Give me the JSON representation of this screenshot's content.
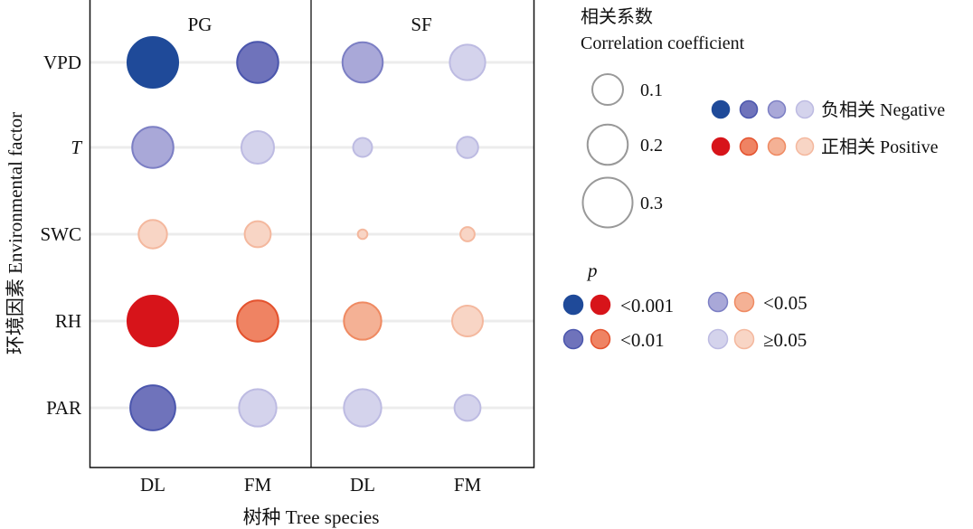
{
  "chart_data": {
    "type": "bubble-matrix",
    "panels": [
      "PG",
      "SF"
    ],
    "species": [
      "DL",
      "FM"
    ],
    "factors": [
      "VPD",
      "T",
      "SWC",
      "RH",
      "PAR"
    ],
    "factor_italic": [
      false,
      true,
      false,
      false,
      false
    ],
    "xlabel": "树种 Tree species",
    "ylabel": "环境因素 Environmental factor",
    "size_legend": {
      "title_cn": "相关系数",
      "title_en": "Correlation coefficient",
      "values": [
        0.1,
        0.2,
        0.3
      ],
      "labels": [
        "0.1",
        "0.2",
        "0.3"
      ]
    },
    "sign_legend": [
      {
        "label": "负相关 Negative",
        "sign": "negative"
      },
      {
        "label": "正相关 Positive",
        "sign": "positive"
      }
    ],
    "p_legend": {
      "title": "p",
      "levels": [
        {
          "key": "p001",
          "label": "<0.001"
        },
        {
          "key": "p01",
          "label": "<0.01"
        },
        {
          "key": "p05",
          "label": "<0.05"
        },
        {
          "key": "ns",
          "label": "≥0.05"
        }
      ]
    },
    "colors": {
      "negative": {
        "p001": "#1f4a99",
        "p01": "#6f73bb",
        "p05": "#a9a8d8",
        "ns": "#d4d3ec"
      },
      "negative_stroke": {
        "p001": "#1f4a99",
        "p01": "#4b56ad",
        "p05": "#7c7fc4",
        "ns": "#bdbbe2"
      },
      "positive": {
        "p001": "#d7141a",
        "p01": "#ef8363",
        "p05": "#f4b195",
        "ns": "#f8d5c5"
      },
      "positive_stroke": {
        "p001": "#d7141a",
        "p01": "#e4522e",
        "p05": "#ef8a62",
        "ns": "#f4b89e"
      },
      "gridline": "#ececec",
      "size_ring": "#999999"
    },
    "points": [
      {
        "panel": "PG",
        "species": "DL",
        "factor": "VPD",
        "r": -0.31,
        "p": "p001"
      },
      {
        "panel": "PG",
        "species": "FM",
        "factor": "VPD",
        "r": -0.21,
        "p": "p01"
      },
      {
        "panel": "SF",
        "species": "DL",
        "factor": "VPD",
        "r": -0.2,
        "p": "p05"
      },
      {
        "panel": "SF",
        "species": "FM",
        "factor": "VPD",
        "r": -0.15,
        "p": "ns"
      },
      {
        "panel": "PG",
        "species": "DL",
        "factor": "T",
        "r": -0.21,
        "p": "p05"
      },
      {
        "panel": "PG",
        "species": "FM",
        "factor": "T",
        "r": -0.12,
        "p": "ns"
      },
      {
        "panel": "SF",
        "species": "DL",
        "factor": "T",
        "r": -0.05,
        "p": "ns"
      },
      {
        "panel": "SF",
        "species": "FM",
        "factor": "T",
        "r": -0.06,
        "p": "ns"
      },
      {
        "panel": "PG",
        "species": "DL",
        "factor": "SWC",
        "r": 0.09,
        "p": "ns"
      },
      {
        "panel": "PG",
        "species": "FM",
        "factor": "SWC",
        "r": 0.08,
        "p": "ns"
      },
      {
        "panel": "SF",
        "species": "DL",
        "factor": "SWC",
        "r": 0.01,
        "p": "ns"
      },
      {
        "panel": "SF",
        "species": "FM",
        "factor": "SWC",
        "r": 0.03,
        "p": "ns"
      },
      {
        "panel": "PG",
        "species": "DL",
        "factor": "RH",
        "r": 0.31,
        "p": "p001"
      },
      {
        "panel": "PG",
        "species": "FM",
        "factor": "RH",
        "r": 0.21,
        "p": "p01"
      },
      {
        "panel": "SF",
        "species": "DL",
        "factor": "RH",
        "r": 0.17,
        "p": "p05"
      },
      {
        "panel": "SF",
        "species": "FM",
        "factor": "RH",
        "r": 0.1,
        "p": "ns"
      },
      {
        "panel": "PG",
        "species": "DL",
        "factor": "PAR",
        "r": -0.25,
        "p": "p01"
      },
      {
        "panel": "PG",
        "species": "FM",
        "factor": "PAR",
        "r": -0.17,
        "p": "ns"
      },
      {
        "panel": "SF",
        "species": "DL",
        "factor": "PAR",
        "r": -0.17,
        "p": "ns"
      },
      {
        "panel": "SF",
        "species": "FM",
        "factor": "PAR",
        "r": -0.08,
        "p": "ns"
      }
    ]
  }
}
